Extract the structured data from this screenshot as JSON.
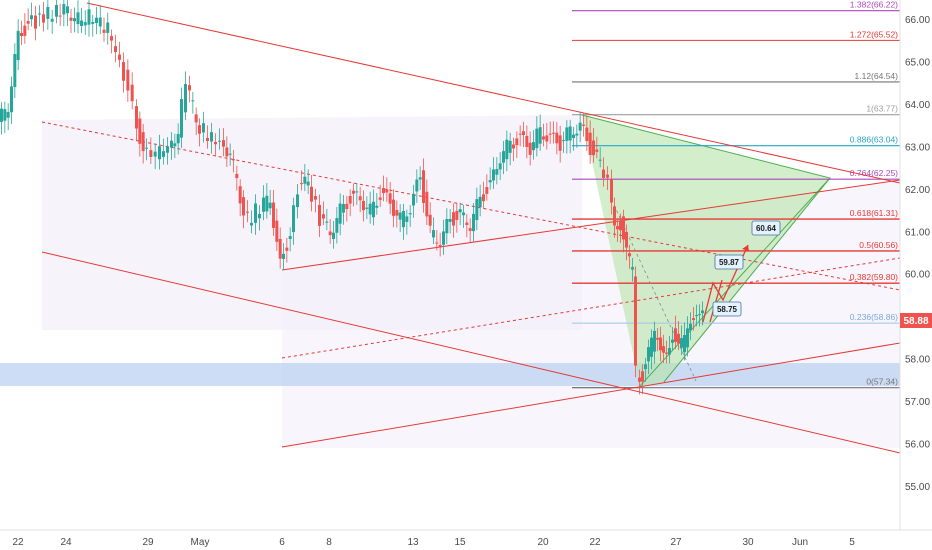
{
  "chart_data": {
    "type": "candlestick",
    "instrument_price_now": "58.88",
    "y_range": [
      54.3,
      66.5
    ],
    "y_ticks": [
      "55.00",
      "56.00",
      "57.00",
      "58.00",
      "59.00",
      "60.00",
      "61.00",
      "62.00",
      "63.00",
      "64.00",
      "65.00",
      "66.00"
    ],
    "x_ticks": [
      "22",
      "24",
      "29",
      "May",
      "6",
      "8",
      "13",
      "15",
      "20",
      "22",
      "27",
      "30",
      "Jun",
      "5"
    ],
    "price_label_color": "#ef5350",
    "up_color": "#26a69a",
    "down_color": "#ef5350",
    "fib_levels": [
      {
        "label": "1.382(66.22)",
        "value": 66.22,
        "color": "#ab47bc"
      },
      {
        "label": "1.272(65.52)",
        "value": 65.52,
        "color": "#e53935"
      },
      {
        "label": "1.12(64.54)",
        "value": 64.54,
        "color": "#757575"
      },
      {
        "label": "1(63.77)",
        "value": 63.77,
        "color": "#9e9e9e"
      },
      {
        "label": "0.886(63.04)",
        "value": 63.04,
        "color": "#26a6c6"
      },
      {
        "label": "0.764(62.25)",
        "value": 62.25,
        "color": "#ab47bc"
      },
      {
        "label": "0.618(61.31)",
        "value": 61.31,
        "color": "#e53935"
      },
      {
        "label": "0.5(60.56)",
        "value": 60.56,
        "color": "#e53935"
      },
      {
        "label": "0.382(59.80)",
        "value": 59.8,
        "color": "#e53935"
      },
      {
        "label": "0.236(58.86)",
        "value": 58.86,
        "color": "#9fc3e7"
      },
      {
        "label": "0(57.34)",
        "value": 57.34,
        "color": "#757575"
      }
    ],
    "annotations": [
      "60.64",
      "59.87",
      "58.75"
    ],
    "support_zone": [
      57.35,
      57.9
    ]
  }
}
